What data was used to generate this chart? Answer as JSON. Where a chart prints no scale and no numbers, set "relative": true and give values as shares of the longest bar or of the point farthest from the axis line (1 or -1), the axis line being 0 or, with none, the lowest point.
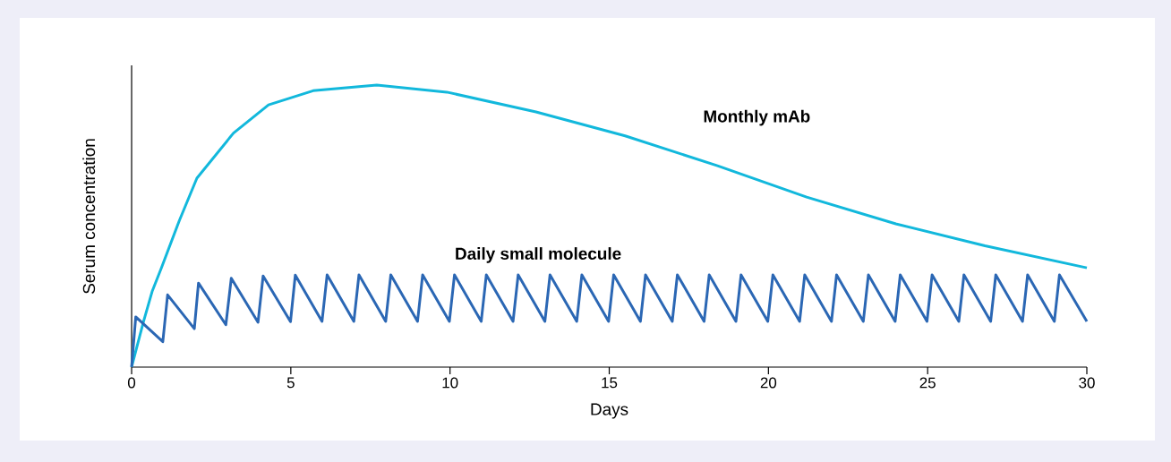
{
  "chart_data": {
    "type": "line",
    "relative": true,
    "xlabel": "Days",
    "ylabel": "Serum concentration",
    "xlim": [
      0,
      30
    ],
    "xticks": [
      0,
      5,
      10,
      15,
      20,
      25,
      30
    ],
    "grid": false,
    "legend": false,
    "marker": "none",
    "line_style": "solid",
    "series": [
      {
        "name": "Monthly mAb",
        "color": "#12b8dc",
        "x": [
          0,
          0.37,
          0.65,
          0.93,
          1.5,
          2.05,
          3.2,
          4.3,
          5.7,
          7.7,
          9.9,
          12.7,
          15.5,
          18.4,
          21.2,
          24.0,
          26.8,
          30
        ],
        "values": [
          0,
          0.16,
          0.27,
          0.35,
          0.52,
          0.67,
          0.83,
          0.93,
          0.98,
          1.0,
          0.975,
          0.905,
          0.82,
          0.714,
          0.603,
          0.508,
          0.43,
          0.352
        ]
      },
      {
        "name": "Daily small molecule",
        "color": "#2b67b4",
        "x": [
          0,
          0.13,
          0.98,
          1.13,
          1.97,
          2.1,
          2.96,
          3.13,
          3.97,
          4.13,
          4.99,
          5.14,
          5.98,
          6.14,
          6.98,
          7.14,
          7.98,
          8.14,
          8.98,
          9.14,
          9.98,
          10.14,
          10.98,
          11.14,
          11.98,
          12.14,
          12.98,
          13.14,
          13.98,
          14.14,
          14.98,
          15.14,
          15.98,
          16.14,
          16.98,
          17.14,
          17.98,
          18.14,
          18.98,
          19.14,
          19.98,
          20.14,
          20.98,
          21.14,
          21.98,
          22.14,
          22.98,
          23.14,
          23.98,
          24.14,
          24.98,
          25.14,
          25.98,
          26.14,
          26.98,
          27.14,
          27.98,
          28.14,
          28.98,
          29.14,
          30
        ],
        "values": [
          0,
          0.178,
          0.09,
          0.256,
          0.136,
          0.298,
          0.15,
          0.315,
          0.159,
          0.323,
          0.161,
          0.326,
          0.162,
          0.327,
          0.162,
          0.327,
          0.162,
          0.327,
          0.162,
          0.327,
          0.162,
          0.327,
          0.162,
          0.327,
          0.162,
          0.327,
          0.162,
          0.327,
          0.162,
          0.327,
          0.162,
          0.327,
          0.162,
          0.327,
          0.162,
          0.327,
          0.162,
          0.327,
          0.162,
          0.327,
          0.162,
          0.327,
          0.162,
          0.327,
          0.162,
          0.327,
          0.162,
          0.327,
          0.162,
          0.327,
          0.162,
          0.327,
          0.162,
          0.327,
          0.162,
          0.327,
          0.162,
          0.327,
          0.162,
          0.327,
          0.162
        ]
      }
    ]
  }
}
